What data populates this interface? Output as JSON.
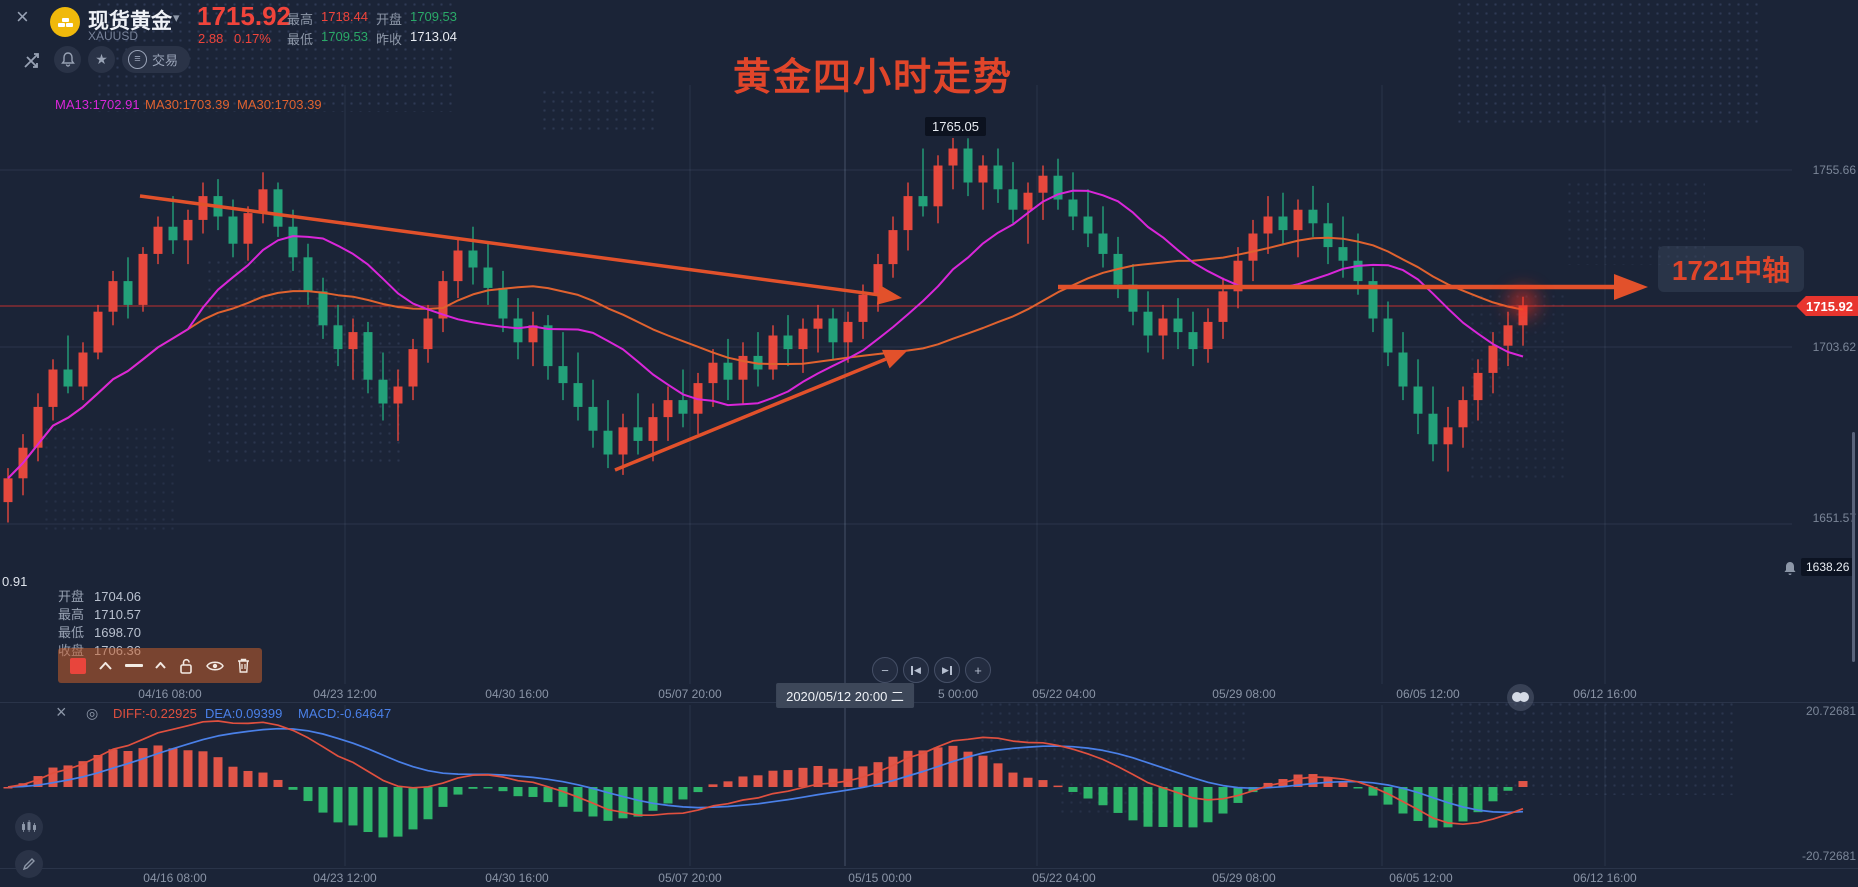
{
  "header": {
    "symbol_name": "现货黄金",
    "symbol_code": "XAUUSD",
    "price": "1715.92",
    "change": "2.88",
    "change_pct": "0.17%",
    "stats": [
      {
        "label": "最高",
        "value": "1718.44"
      },
      {
        "label": "最低",
        "value": "1709.53"
      },
      {
        "label": "开盘",
        "value": "1709.53"
      },
      {
        "label": "昨收",
        "value": "1713.04"
      }
    ],
    "trade_label": "交易"
  },
  "ma_labels": [
    {
      "text": "MA13:1702.91"
    },
    {
      "text": "MA30:1703.39"
    },
    {
      "text": "MA30:1703.39"
    }
  ],
  "annotations": {
    "chart_title": "黄金四小时走势",
    "peak_label": "1765.05",
    "axis_note": "1721中轴",
    "partial_price": "0.91"
  },
  "price_axis": {
    "tick1": "1755.66",
    "tick2": "1703.62",
    "tick3": "1651.57",
    "current": "1715.92",
    "alert": "1638.26"
  },
  "ohlc_tooltip": {
    "rows": [
      {
        "label": "开盘",
        "value": "1704.06"
      },
      {
        "label": "最高",
        "value": "1710.57"
      },
      {
        "label": "最低",
        "value": "1698.70"
      },
      {
        "label": "收盘",
        "value": "1706.36"
      }
    ]
  },
  "time_axis": {
    "highlight": "2020/05/12 20:00 二",
    "partial": "5 00:00",
    "top": [
      "04/16 08:00",
      "04/23 12:00",
      "04/30 16:00",
      "05/07 20:00",
      "05/22 04:00",
      "05/29 08:00",
      "06/05 12:00",
      "06/12 16:00"
    ],
    "bottom": [
      "04/16 08:00",
      "04/23 12:00",
      "04/30 16:00",
      "05/07 20:00",
      "05/15 00:00",
      "05/22 04:00",
      "05/29 08:00",
      "06/05 12:00",
      "06/12 16:00"
    ]
  },
  "macd_panel": {
    "diff_label": "DIFF:-0.22925",
    "dea_label": "DEA:0.09399",
    "macd_label": "MACD:-0.64647",
    "axis_top": "20.72681",
    "axis_bottom": "-20.72681"
  },
  "icons": {
    "close": "×",
    "caret_down": "▾",
    "star": "★",
    "menu": "≡",
    "minus": "−",
    "plus": "+",
    "prev": "◀",
    "next": "▶",
    "gear": "◎"
  },
  "colors": {
    "up_candle": "#e6483d",
    "down_candle": "#23a179",
    "ma_fast": "#d926d9",
    "ma_slow": "#e0622f",
    "annotation_orange": "#e2512b",
    "price_line_red": "#e8352e",
    "diff_line": "#e0503f",
    "dea_line": "#4a80e8",
    "background": "#1b2437"
  },
  "chart_data": {
    "type": "candlestick",
    "symbol": "XAUUSD",
    "interval": "4小时",
    "title": "黄金四小时走势",
    "price_axis_ticks": [
      1755.66,
      1703.62,
      1651.57
    ],
    "current_price": 1715.92,
    "marked_high": 1765.05,
    "alert_level": 1638.26,
    "overlays": [
      {
        "name": "MA13",
        "period": 13,
        "value": 1702.91
      },
      {
        "name": "MA30",
        "period": 30,
        "value": 1703.39
      }
    ],
    "indicator": {
      "name": "MACD",
      "diff": -0.22925,
      "dea": 0.09399,
      "macd": -0.64647,
      "axis_max": 20.72681,
      "axis_min": -20.72681
    },
    "candles": [
      [
        1658,
        1668,
        1652,
        1665
      ],
      [
        1665,
        1678,
        1660,
        1674
      ],
      [
        1674,
        1690,
        1670,
        1686
      ],
      [
        1686,
        1700,
        1682,
        1697
      ],
      [
        1697,
        1707,
        1690,
        1692
      ],
      [
        1692,
        1705,
        1688,
        1702
      ],
      [
        1702,
        1716,
        1700,
        1714
      ],
      [
        1714,
        1726,
        1710,
        1723
      ],
      [
        1723,
        1730,
        1712,
        1716
      ],
      [
        1716,
        1733,
        1714,
        1731
      ],
      [
        1731,
        1742,
        1728,
        1739
      ],
      [
        1739,
        1748,
        1731,
        1735
      ],
      [
        1735,
        1744,
        1728,
        1741
      ],
      [
        1741,
        1752,
        1737,
        1748
      ],
      [
        1748,
        1753,
        1738,
        1742
      ],
      [
        1742,
        1747,
        1730,
        1734
      ],
      [
        1734,
        1745,
        1729,
        1743
      ],
      [
        1743,
        1755,
        1740,
        1750
      ],
      [
        1750,
        1752,
        1736,
        1739
      ],
      [
        1739,
        1744,
        1726,
        1730
      ],
      [
        1730,
        1734,
        1716,
        1720
      ],
      [
        1720,
        1724,
        1706,
        1710
      ],
      [
        1710,
        1716,
        1698,
        1703
      ],
      [
        1703,
        1712,
        1694,
        1708
      ],
      [
        1708,
        1711,
        1690,
        1694
      ],
      [
        1694,
        1702,
        1682,
        1687
      ],
      [
        1687,
        1697,
        1676,
        1692
      ],
      [
        1692,
        1706,
        1688,
        1703
      ],
      [
        1703,
        1716,
        1699,
        1712
      ],
      [
        1712,
        1726,
        1708,
        1723
      ],
      [
        1723,
        1736,
        1718,
        1732
      ],
      [
        1732,
        1739,
        1722,
        1727
      ],
      [
        1727,
        1734,
        1716,
        1721
      ],
      [
        1721,
        1726,
        1708,
        1712
      ],
      [
        1712,
        1718,
        1700,
        1705
      ],
      [
        1705,
        1714,
        1698,
        1710
      ],
      [
        1710,
        1713,
        1694,
        1698
      ],
      [
        1698,
        1708,
        1688,
        1693
      ],
      [
        1693,
        1702,
        1682,
        1686
      ],
      [
        1686,
        1694,
        1674,
        1679
      ],
      [
        1679,
        1688,
        1668,
        1672
      ],
      [
        1672,
        1684,
        1666,
        1680
      ],
      [
        1680,
        1690,
        1672,
        1676
      ],
      [
        1676,
        1687,
        1670,
        1683
      ],
      [
        1683,
        1692,
        1676,
        1688
      ],
      [
        1688,
        1697,
        1680,
        1684
      ],
      [
        1684,
        1696,
        1678,
        1693
      ],
      [
        1693,
        1703,
        1686,
        1699
      ],
      [
        1699,
        1706,
        1688,
        1694
      ],
      [
        1694,
        1705,
        1687,
        1701
      ],
      [
        1701,
        1708,
        1692,
        1697
      ],
      [
        1697,
        1710,
        1694,
        1707
      ],
      [
        1707,
        1713,
        1698,
        1703
      ],
      [
        1703,
        1712,
        1696,
        1709
      ],
      [
        1709,
        1716,
        1702,
        1712
      ],
      [
        1712,
        1715,
        1700,
        1705
      ],
      [
        1705,
        1714,
        1699,
        1711
      ],
      [
        1711,
        1722,
        1706,
        1719
      ],
      [
        1719,
        1731,
        1714,
        1728
      ],
      [
        1728,
        1742,
        1724,
        1738
      ],
      [
        1738,
        1752,
        1732,
        1748
      ],
      [
        1748,
        1762,
        1742,
        1745
      ],
      [
        1745,
        1760,
        1740,
        1757
      ],
      [
        1757,
        1765.1,
        1750,
        1762
      ],
      [
        1762,
        1765,
        1748,
        1752
      ],
      [
        1752,
        1760,
        1744,
        1757
      ],
      [
        1757,
        1762,
        1746,
        1750
      ],
      [
        1750,
        1758,
        1740,
        1744
      ],
      [
        1744,
        1752,
        1734,
        1749
      ],
      [
        1749,
        1757,
        1741,
        1754
      ],
      [
        1754,
        1759,
        1744,
        1747
      ],
      [
        1747,
        1755,
        1738,
        1742
      ],
      [
        1742,
        1750,
        1733,
        1737
      ],
      [
        1737,
        1745,
        1727,
        1731
      ],
      [
        1731,
        1736,
        1718,
        1722
      ],
      [
        1722,
        1728,
        1710,
        1714
      ],
      [
        1714,
        1720,
        1702,
        1707
      ],
      [
        1707,
        1716,
        1700,
        1712
      ],
      [
        1712,
        1718,
        1703,
        1708
      ],
      [
        1708,
        1714,
        1698,
        1703
      ],
      [
        1703,
        1715,
        1699,
        1711
      ],
      [
        1711,
        1724,
        1706,
        1720
      ],
      [
        1720,
        1733,
        1715,
        1729
      ],
      [
        1729,
        1741,
        1723,
        1737
      ],
      [
        1737,
        1748,
        1731,
        1742
      ],
      [
        1742,
        1749,
        1734,
        1738
      ],
      [
        1738,
        1747,
        1730,
        1744
      ],
      [
        1744,
        1751,
        1736,
        1740
      ],
      [
        1740,
        1746,
        1728,
        1733
      ],
      [
        1733,
        1742,
        1724,
        1729
      ],
      [
        1729,
        1737,
        1719,
        1723
      ],
      [
        1723,
        1727,
        1708,
        1712
      ],
      [
        1712,
        1717,
        1698,
        1702
      ],
      [
        1702,
        1708,
        1688,
        1692
      ],
      [
        1692,
        1700,
        1678,
        1684
      ],
      [
        1684,
        1692,
        1670,
        1675
      ],
      [
        1675,
        1686,
        1667,
        1680
      ],
      [
        1680,
        1692,
        1674,
        1688
      ],
      [
        1688,
        1700,
        1682,
        1696
      ],
      [
        1696,
        1708,
        1690,
        1704
      ],
      [
        1704,
        1714,
        1698,
        1710
      ],
      [
        1710,
        1718.4,
        1704,
        1715.9
      ]
    ]
  }
}
